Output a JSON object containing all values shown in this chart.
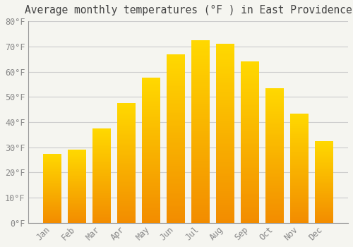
{
  "title": "Average monthly temperatures (°F ) in East Providence",
  "months": [
    "Jan",
    "Feb",
    "Mar",
    "Apr",
    "May",
    "Jun",
    "Jul",
    "Aug",
    "Sep",
    "Oct",
    "Nov",
    "Dec"
  ],
  "values": [
    27.5,
    29.0,
    37.5,
    47.5,
    57.5,
    67.0,
    72.5,
    71.0,
    64.0,
    53.5,
    43.5,
    32.5
  ],
  "bar_color": "#FFA500",
  "bar_color_light": "#FFD050",
  "background_color": "#F5F5F0",
  "plot_bg_color": "#F5F5F0",
  "grid_color": "#CCCCCC",
  "tick_label_color": "#888888",
  "title_color": "#444444",
  "spine_color": "#999999",
  "ylim": [
    0,
    80
  ],
  "ytick_step": 10,
  "title_fontsize": 10.5,
  "tick_fontsize": 8.5
}
